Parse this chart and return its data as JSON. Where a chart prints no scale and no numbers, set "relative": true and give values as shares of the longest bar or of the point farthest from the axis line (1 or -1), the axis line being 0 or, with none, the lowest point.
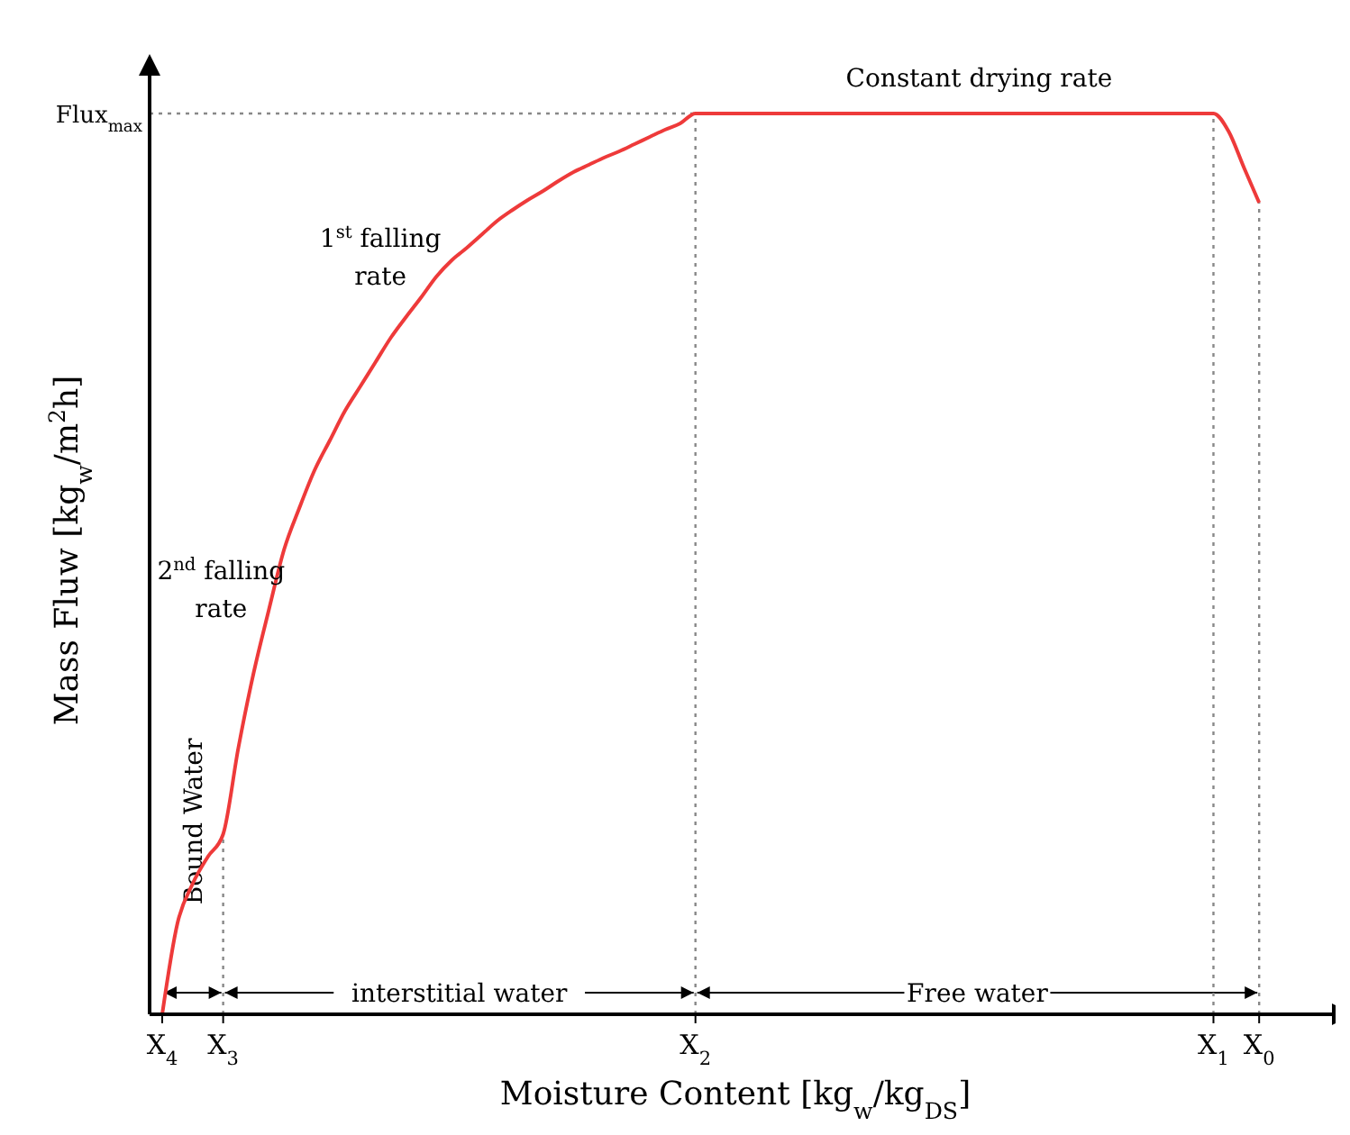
{
  "chart_data": {
    "type": "line",
    "relative": true,
    "xlabel": "Moisture Content [kg$_{w}$/kg$_{DS}$]",
    "ylabel": "Mass Fluw [kg$_{w}$/m$^{2}$h]",
    "categories": [
      "X$_{4}$",
      null,
      null,
      null,
      "X$_{3}$",
      null,
      null,
      null,
      null,
      null,
      null,
      null,
      null,
      null,
      null,
      null,
      null,
      null,
      null,
      null,
      null,
      null,
      null,
      null,
      null,
      null,
      null,
      null,
      null,
      null,
      null,
      null,
      null,
      null,
      null,
      "X$_{2}$",
      null,
      null,
      null,
      null,
      null,
      null,
      null,
      null,
      null,
      null,
      null,
      null,
      null,
      null,
      null,
      null,
      null,
      null,
      null,
      null,
      null,
      null,
      null,
      null,
      null,
      null,
      null,
      null,
      null,
      null,
      null,
      null,
      null,
      "X$_{1}$",
      null,
      null,
      "X$_{0}$"
    ],
    "series": [
      {
        "color": "#ee3a3a",
        "values": [
          0,
          0.101,
          0.145,
          0.175,
          0.2,
          0.296,
          0.379,
          0.449,
          0.516,
          0.562,
          0.604,
          0.637,
          0.67,
          0.697,
          0.724,
          0.751,
          0.774,
          0.796,
          0.819,
          0.837,
          0.851,
          0.866,
          0.881,
          0.893,
          0.904,
          0.914,
          0.925,
          0.935,
          0.943,
          0.951,
          0.958,
          0.966,
          0.974,
          0.982,
          0.989,
          1,
          1,
          1,
          1,
          1,
          1,
          1,
          1,
          1,
          1,
          1,
          1,
          1,
          1,
          1,
          1,
          1,
          1,
          1,
          1,
          1,
          1,
          1,
          1,
          1,
          1,
          1,
          1,
          1,
          1,
          1,
          1,
          1,
          1,
          1,
          0.98,
          0.94,
          0.901
        ]
      }
    ],
    "ref_lines": [
      {
        "axis": "y",
        "value": 1,
        "label": "Flux$_{max}$",
        "line_style": "dotted",
        "color": "#888888"
      },
      {
        "axis": "x",
        "value": "X$_{3}$",
        "line_style": "dotted",
        "color": "#888888"
      },
      {
        "axis": "x",
        "value": "X$_{2}$",
        "line_style": "dotted",
        "color": "#888888"
      },
      {
        "axis": "x",
        "value": "X$_{1}$",
        "line_style": "dotted",
        "color": "#888888"
      },
      {
        "axis": "x",
        "value": "X$_{0}$",
        "line_style": "dotted",
        "color": "#888888"
      }
    ],
    "annotations": [
      "Constant drying rate",
      "1$^{st}$ falling rate",
      "2$^{nd}$ falling rate",
      "Bound Water",
      "interstitial water",
      "Free water"
    ],
    "marker": "none",
    "line_style": "solid"
  }
}
